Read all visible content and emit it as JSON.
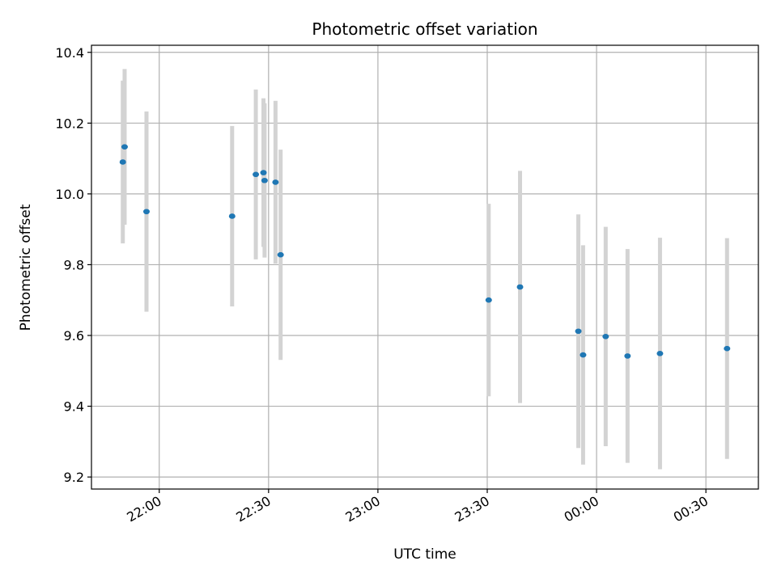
{
  "chart_data": {
    "type": "scatter",
    "title": "Photometric offset variation",
    "xlabel": "UTC time",
    "ylabel": "Photometric offset",
    "x_tick_labels": [
      "22:00",
      "22:30",
      "23:00",
      "23:30",
      "00:00",
      "00:30"
    ],
    "x_tick_times": [
      "2000-01-01T22:00",
      "2000-01-01T22:30",
      "2000-01-01T23:00",
      "2000-01-01T23:30",
      "2000-01-02T00:00",
      "2000-01-02T00:30"
    ],
    "xlim": [
      "2000-01-01T21:41:24",
      "2000-01-02T00:44:24"
    ],
    "y_ticks": [
      "9.2",
      "9.4",
      "9.6",
      "9.8",
      "10.0",
      "10.2",
      "10.4"
    ],
    "ylim": [
      9.166,
      10.42
    ],
    "grid": true,
    "colors": {
      "marker": "#1f77b4",
      "errorbar": "#d3d3d3",
      "grid": "#b0b0b0"
    },
    "series": [
      {
        "points": [
          {
            "t": "2000-01-01T21:50:00",
            "y": 10.09,
            "err": 0.23
          },
          {
            "t": "2000-01-01T21:50:30",
            "y": 10.133,
            "err": 0.22
          },
          {
            "t": "2000-01-01T21:56:30",
            "y": 9.95,
            "err": 0.283
          },
          {
            "t": "2000-01-01T22:20:00",
            "y": 9.937,
            "err": 0.255
          },
          {
            "t": "2000-01-01T22:26:30",
            "y": 10.055,
            "err": 0.24
          },
          {
            "t": "2000-01-01T22:28:36",
            "y": 10.06,
            "err": 0.21
          },
          {
            "t": "2000-01-01T22:28:54",
            "y": 10.038,
            "err": 0.218
          },
          {
            "t": "2000-01-01T22:31:54",
            "y": 10.033,
            "err": 0.23
          },
          {
            "t": "2000-01-01T22:33:18",
            "y": 9.828,
            "err": 0.297
          },
          {
            "t": "2000-01-01T23:30:24",
            "y": 9.7,
            "err": 0.272
          },
          {
            "t": "2000-01-01T23:39:00",
            "y": 9.737,
            "err": 0.328
          },
          {
            "t": "2000-01-01T23:55:00",
            "y": 9.612,
            "err": 0.33
          },
          {
            "t": "2000-01-01T23:56:18",
            "y": 9.545,
            "err": 0.31
          },
          {
            "t": "2000-01-02T00:02:30",
            "y": 9.597,
            "err": 0.31
          },
          {
            "t": "2000-01-02T00:08:30",
            "y": 9.542,
            "err": 0.302
          },
          {
            "t": "2000-01-02T00:17:24",
            "y": 9.549,
            "err": 0.327
          },
          {
            "t": "2000-01-02T00:35:48",
            "y": 9.563,
            "err": 0.312
          }
        ]
      }
    ]
  }
}
